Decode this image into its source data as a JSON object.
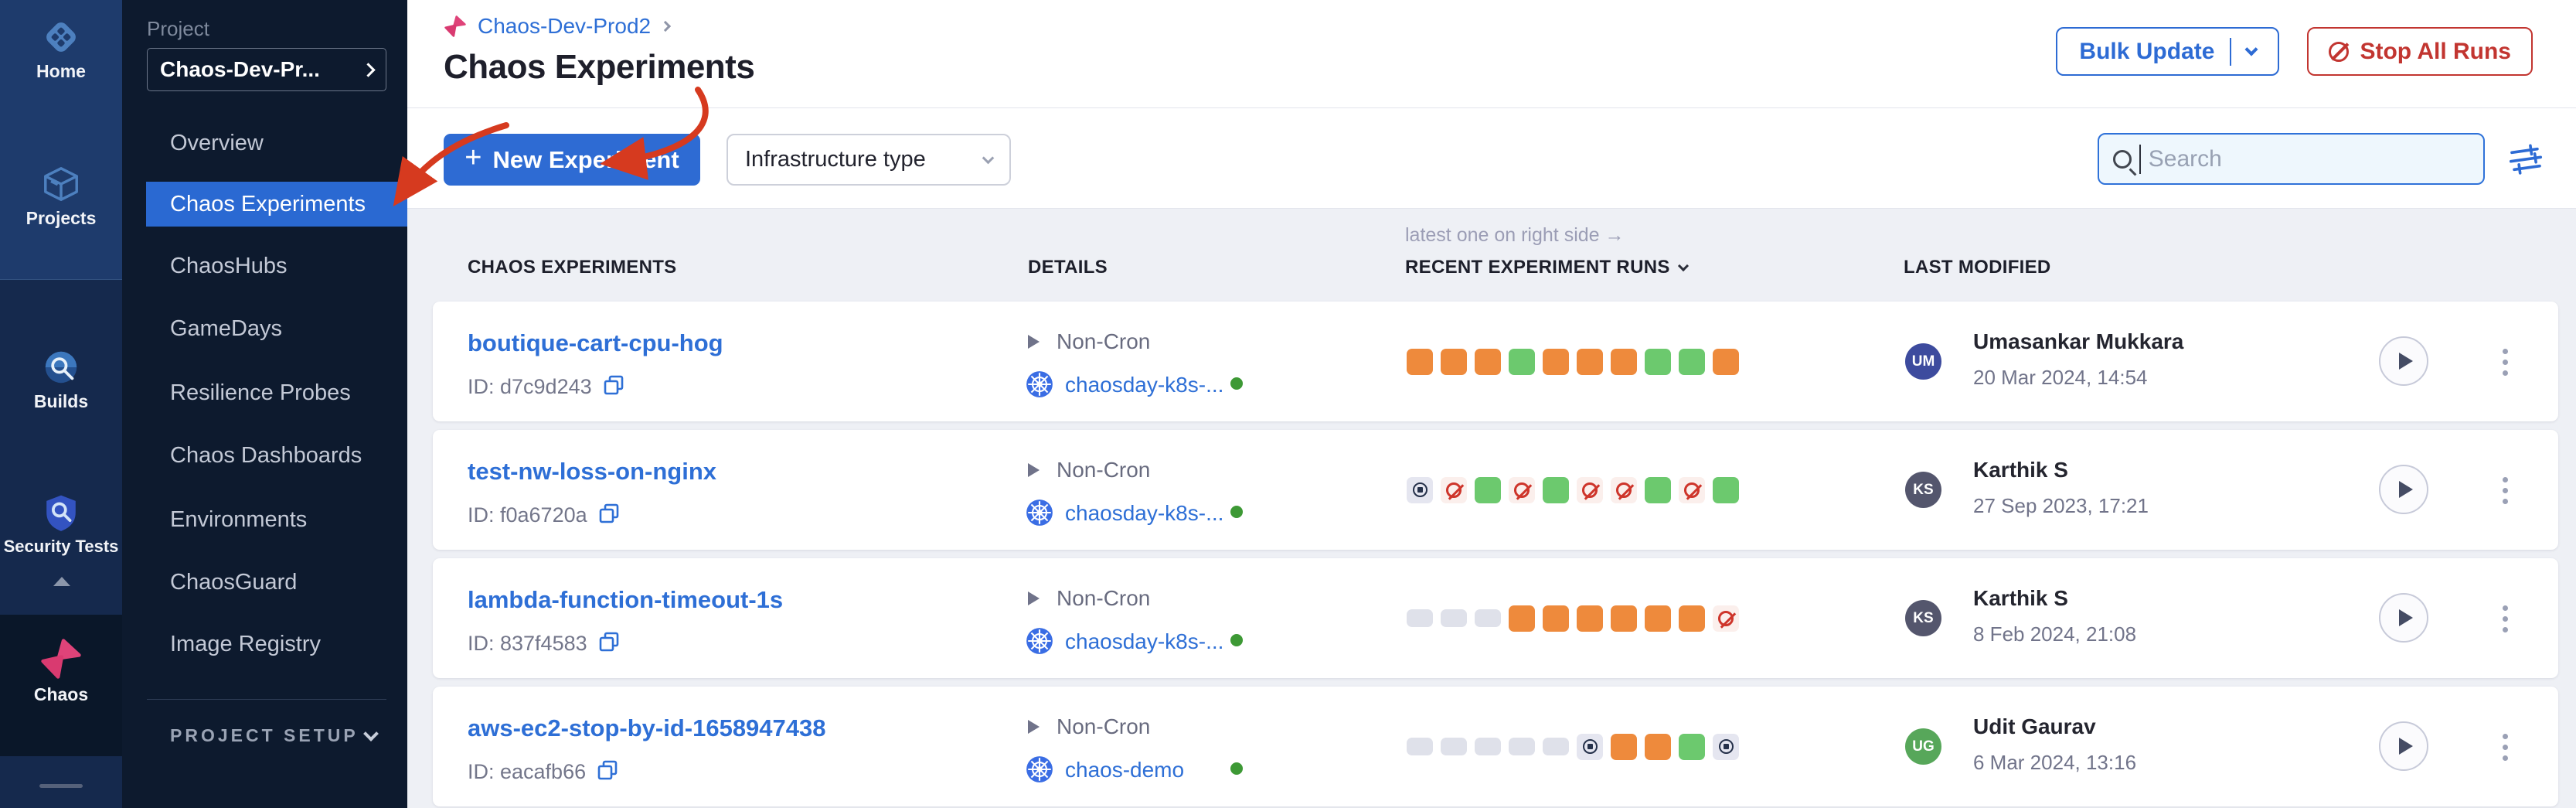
{
  "rail": {
    "items": [
      {
        "label": "Home"
      },
      {
        "label": "Projects"
      },
      {
        "label": "Builds"
      },
      {
        "label": "Security Tests"
      },
      {
        "label": "Chaos"
      }
    ],
    "active_item": "Chaos"
  },
  "project_nav": {
    "section_label": "Project",
    "project_selector": "Chaos-Dev-Pr...",
    "items": [
      "Overview",
      "Chaos Experiments",
      "ChaosHubs",
      "GameDays",
      "Resilience Probes",
      "Chaos Dashboards",
      "Environments",
      "ChaosGuard",
      "Image Registry"
    ],
    "active_item": "Chaos Experiments",
    "footer_label": "PROJECT SETUP"
  },
  "header": {
    "breadcrumb": "Chaos-Dev-Prod2",
    "title": "Chaos Experiments",
    "bulk_update_label": "Bulk Update",
    "stop_all_label": "Stop All Runs"
  },
  "toolbar": {
    "new_experiment_label": "New Experiment",
    "plus_glyph": "+",
    "infrastructure_type_label": "Infrastructure type",
    "search_placeholder": "Search"
  },
  "table": {
    "runs_hint": "latest one on right side →",
    "columns": [
      "CHAOS EXPERIMENTS",
      "DETAILS",
      "RECENT EXPERIMENT RUNS",
      "LAST MODIFIED"
    ],
    "rows": [
      {
        "name": "boutique-cart-cpu-hog",
        "id_label": "ID: d7c9d243",
        "schedule": "Non-Cron",
        "infra": "chaosday-k8s-...",
        "runs": [
          "orange",
          "orange",
          "orange",
          "green",
          "orange",
          "orange",
          "orange",
          "green",
          "green",
          "orange"
        ],
        "user": "Umasankar Mukkara",
        "initials": "UM",
        "avatar_color": "#3d4b9e",
        "date": "20 Mar 2024, 14:54"
      },
      {
        "name": "test-nw-loss-on-nginx",
        "id_label": "ID: f0a6720a",
        "schedule": "Non-Cron",
        "infra": "chaosday-k8s-...",
        "runs": [
          "stopped",
          "cancelled",
          "green",
          "cancelled",
          "green",
          "cancelled",
          "cancelled",
          "green",
          "cancelled",
          "green"
        ],
        "user": "Karthik S",
        "initials": "KS",
        "avatar_color": "#54566d",
        "date": "27 Sep 2023, 17:21"
      },
      {
        "name": "lambda-function-timeout-1s",
        "id_label": "ID: 837f4583",
        "schedule": "Non-Cron",
        "infra": "chaosday-k8s-...",
        "runs": [
          "empty",
          "empty",
          "empty",
          "orange",
          "orange",
          "orange",
          "orange",
          "orange",
          "orange",
          "cancelled"
        ],
        "user": "Karthik S",
        "initials": "KS",
        "avatar_color": "#54566d",
        "date": "8 Feb 2024, 21:08"
      },
      {
        "name": "aws-ec2-stop-by-id-1658947438",
        "id_label": "ID: eacafb66",
        "schedule": "Non-Cron",
        "infra": "chaos-demo",
        "runs": [
          "empty",
          "empty",
          "empty",
          "empty",
          "empty",
          "stopped",
          "orange",
          "orange",
          "green",
          "stopped"
        ],
        "user": "Udit Gaurav",
        "initials": "UG",
        "avatar_color": "#57a75a",
        "date": "6 Mar 2024, 13:16"
      }
    ]
  },
  "colors": {
    "primary_blue": "#2e6bd3",
    "link_blue": "#2e6fd6",
    "danger_red": "#c23530",
    "run_orange": "#ee8a3c",
    "run_green": "#6cc96e",
    "annotation_red": "#d63a1f"
  }
}
